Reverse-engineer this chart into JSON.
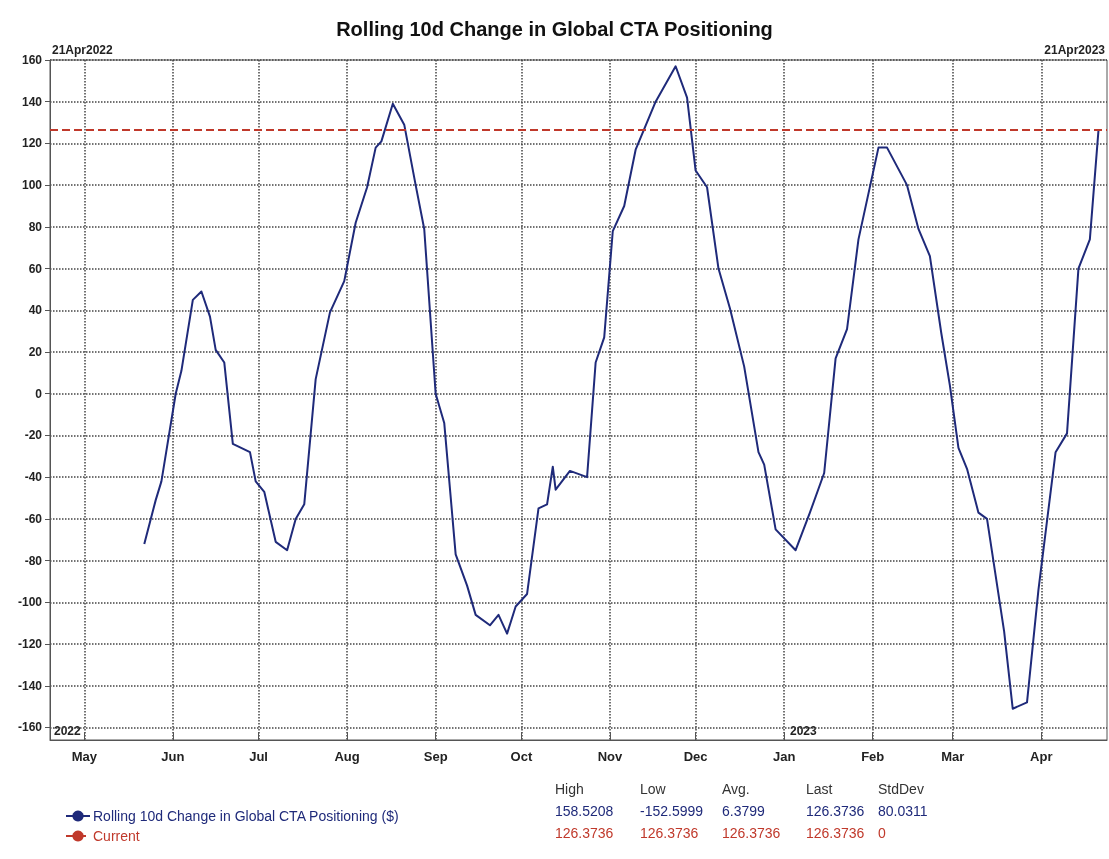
{
  "chart_data": {
    "type": "line",
    "title": "Rolling 10d Change in Global CTA Positioning",
    "x": [
      "2022-05-22",
      "2022-05-26",
      "2022-05-28",
      "2022-06-02",
      "2022-06-04",
      "2022-06-08",
      "2022-06-11",
      "2022-06-14",
      "2022-06-16",
      "2022-06-19",
      "2022-06-22",
      "2022-06-28",
      "2022-06-30",
      "2022-07-03",
      "2022-07-07",
      "2022-07-11",
      "2022-07-14",
      "2022-07-17",
      "2022-07-21",
      "2022-07-26",
      "2022-07-31",
      "2022-08-04",
      "2022-08-08",
      "2022-08-11",
      "2022-08-13",
      "2022-08-17",
      "2022-08-21",
      "2022-08-25",
      "2022-08-28",
      "2022-09-01",
      "2022-09-04",
      "2022-09-08",
      "2022-09-12",
      "2022-09-15",
      "2022-09-20",
      "2022-09-23",
      "2022-09-26",
      "2022-09-29",
      "2022-10-03",
      "2022-10-07",
      "2022-10-10",
      "2022-10-12",
      "2022-10-13",
      "2022-10-18",
      "2022-10-24",
      "2022-10-27",
      "2022-10-30",
      "2022-11-02",
      "2022-11-06",
      "2022-11-10",
      "2022-11-17",
      "2022-11-24",
      "2022-11-28",
      "2022-12-01",
      "2022-12-05",
      "2022-12-09",
      "2022-12-13",
      "2022-12-18",
      "2022-12-23",
      "2022-12-25",
      "2022-12-29",
      "2023-01-05",
      "2023-01-10",
      "2023-01-15",
      "2023-01-19",
      "2023-01-23",
      "2023-01-27",
      "2023-02-03",
      "2023-02-06",
      "2023-02-13",
      "2023-02-17",
      "2023-02-21",
      "2023-02-25",
      "2023-02-28",
      "2023-03-03",
      "2023-03-06",
      "2023-03-10",
      "2023-03-13",
      "2023-03-19",
      "2023-03-22",
      "2023-03-27",
      "2023-03-31",
      "2023-04-06",
      "2023-04-10",
      "2023-04-14",
      "2023-04-18",
      "2023-04-21"
    ],
    "series": [
      {
        "name": "Rolling 10d Change in Global CTA Positioning ($)",
        "color": "#1f2a7a",
        "values": [
          -72,
          -51,
          -42,
          0,
          11,
          45,
          49,
          37,
          21,
          15,
          -24,
          -28,
          -42,
          -47,
          -71,
          -75,
          -60,
          -53,
          7,
          39,
          54,
          82,
          99,
          118,
          121,
          139,
          129,
          100,
          79,
          0,
          -14,
          -77,
          -92,
          -106,
          -111,
          -106,
          -115,
          -102,
          -96,
          -55,
          -53,
          -35,
          -46,
          -37,
          -40,
          15,
          27,
          78,
          90,
          117,
          140,
          157,
          142,
          107,
          99,
          60,
          41,
          13,
          -28,
          -34,
          -65,
          -75,
          -57,
          -38,
          17,
          31,
          74,
          118,
          118,
          100,
          79,
          66,
          29,
          4,
          -26,
          -36,
          -57,
          -60,
          -114,
          -151,
          -148,
          -94,
          -28,
          -19,
          60,
          74,
          126
        ]
      }
    ],
    "ref_lines": [
      {
        "axis": "y",
        "value": 126.3736,
        "label": "Current",
        "color": "#c0392b",
        "line_style": "dashed"
      }
    ],
    "xlim": [
      "2022-04-19",
      "2023-04-24"
    ],
    "xticks": [
      {
        "value": "2022-05-01",
        "label": "May"
      },
      {
        "value": "2022-06-01",
        "label": "Jun"
      },
      {
        "value": "2022-07-01",
        "label": "Jul"
      },
      {
        "value": "2022-08-01",
        "label": "Aug"
      },
      {
        "value": "2022-09-01",
        "label": "Sep"
      },
      {
        "value": "2022-10-01",
        "label": "Oct"
      },
      {
        "value": "2022-11-01",
        "label": "Nov"
      },
      {
        "value": "2022-12-01",
        "label": "Dec"
      },
      {
        "value": "2023-01-01",
        "label": "Jan"
      },
      {
        "value": "2023-02-01",
        "label": "Feb"
      },
      {
        "value": "2023-03-01",
        "label": "Mar"
      },
      {
        "value": "2023-04-01",
        "label": "Apr"
      }
    ],
    "ylim": [
      -166,
      160
    ],
    "yticks": [
      -160,
      -140,
      -120,
      -100,
      -80,
      -60,
      -40,
      -20,
      0,
      20,
      40,
      60,
      80,
      100,
      120,
      140,
      160
    ],
    "grid": true,
    "legend": "bottom left",
    "annotations": [
      "21Apr2022",
      "21Apr2023",
      "2022",
      "2023",
      "High",
      "Low",
      "Avg.",
      "Last",
      "StdDev",
      "158.5208",
      "-152.5999",
      "6.3799",
      "126.3736",
      "80.0311",
      "126.3736",
      "126.3736",
      "126.3736",
      "126.3736",
      "0"
    ]
  }
}
